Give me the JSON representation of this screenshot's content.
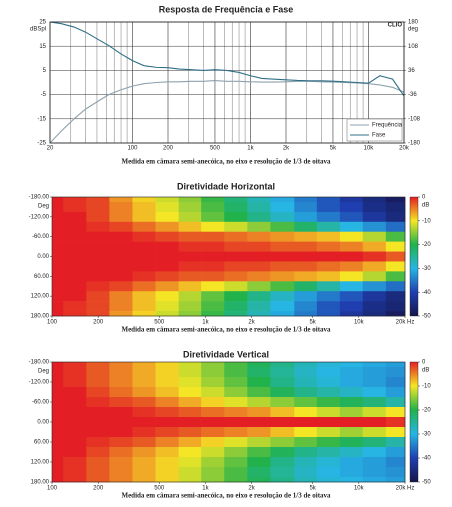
{
  "chart_data": [
    {
      "type": "line",
      "title": "Resposta de Frequência e Fase",
      "logo": "CLIO",
      "yunit": "dBSpl",
      "y2unit": "deg",
      "caption": "Medida em câmara semi-anecóica, no eixo e resolução de 1/3 de oitava",
      "xscale": "log",
      "xlim": [
        20,
        20000
      ],
      "xticks": [
        20,
        100,
        200,
        500,
        {
          "value": 1000,
          "label": "1k"
        },
        {
          "value": 2000,
          "label": "2k"
        },
        {
          "value": 5000,
          "label": "5k"
        },
        {
          "value": 10000,
          "label": "10k"
        },
        {
          "value": 20000,
          "label": "20k"
        }
      ],
      "xgrid": [
        30,
        40,
        50,
        60,
        70,
        80,
        90,
        300,
        400,
        600,
        700,
        800,
        900,
        3000,
        4000,
        6000,
        7000,
        8000,
        9000
      ],
      "ylim": [
        -25,
        25
      ],
      "yticks": [
        25,
        15,
        5,
        -5,
        -15,
        -25
      ],
      "y2lim": [
        -180,
        180
      ],
      "y2ticks": [
        180,
        108,
        36,
        -36,
        -108,
        -180
      ],
      "grid": true,
      "legend": "lower right",
      "x": [
        20,
        25,
        32,
        40,
        50,
        63,
        80,
        100,
        125,
        160,
        200,
        250,
        315,
        400,
        500,
        630,
        800,
        1000,
        1250,
        1600,
        2000,
        2500,
        3150,
        4000,
        5000,
        6300,
        8000,
        10000,
        12500,
        16000,
        20000
      ],
      "series": [
        {
          "name": "Frequência",
          "color": "#8ea2ae",
          "values": [
            -25,
            -20,
            -15,
            -11,
            -8,
            -5,
            -3,
            -1.5,
            -0.5,
            0,
            0.3,
            0.3,
            0.5,
            0.5,
            0.8,
            0.5,
            0.5,
            0.3,
            0.2,
            0.2,
            0.3,
            0.5,
            0.5,
            0.3,
            0.2,
            0,
            -0.2,
            -0.5,
            -1,
            -2,
            -4
          ]
        },
        {
          "name": "Fase",
          "color": "#2f6f86",
          "axis": "y2",
          "values": [
            180,
            175,
            165,
            150,
            130,
            110,
            85,
            65,
            50,
            45,
            44,
            40,
            38,
            36,
            38,
            36,
            30,
            20,
            12,
            10,
            8,
            6,
            5,
            5,
            4,
            2,
            0,
            -2,
            20,
            10,
            -40
          ]
        }
      ]
    },
    {
      "type": "heatmap",
      "title": "Diretividade Horizontal",
      "yunit": "Deg",
      "cunit": "dB",
      "caption": "Medida em câmara semi-anecóica, no eixo e resolução de 1/3 de oitava",
      "xscale": "log",
      "xlim": [
        100,
        20000
      ],
      "xticks": [
        100,
        200,
        500,
        {
          "value": 1000,
          "label": "1k"
        },
        {
          "value": 2000,
          "label": "2k"
        },
        {
          "value": 5000,
          "label": "5k"
        },
        {
          "value": 10000,
          "label": "10k"
        },
        {
          "value": 20000,
          "label": "20k Hz"
        }
      ],
      "ylim": [
        -180,
        180
      ],
      "yticks": [
        {
          "value": -180,
          "label": "-180.00"
        },
        {
          "value": -120,
          "label": "-120.00"
        },
        {
          "value": -60,
          "label": "-60.00"
        },
        {
          "value": 0,
          "label": "0.00"
        },
        {
          "value": 60,
          "label": "60.00"
        },
        {
          "value": 120,
          "label": "120.00"
        },
        {
          "value": 180,
          "label": "180.00"
        }
      ],
      "clim": [
        -50,
        0
      ],
      "cticks": [
        0,
        -10,
        -20,
        -30,
        -40,
        -50
      ],
      "colorscale": [
        {
          "value": 0,
          "color": "#e31e24"
        },
        {
          "value": -10,
          "color": "#f5e625"
        },
        {
          "value": -20,
          "color": "#21b24b"
        },
        {
          "value": -30,
          "color": "#27b5e3"
        },
        {
          "value": -40,
          "color": "#1f3fb0"
        },
        {
          "value": -50,
          "color": "#15154a"
        }
      ],
      "x": [
        100,
        140,
        200,
        280,
        400,
        560,
        800,
        1100,
        1600,
        2200,
        3200,
        4500,
        6300,
        9000,
        12500,
        18000
      ],
      "y": [
        -180,
        -150,
        -120,
        -90,
        -60,
        -30,
        0,
        30,
        60,
        90,
        120,
        150,
        180
      ],
      "z": [
        [
          0,
          -1,
          -2,
          -6,
          -9,
          -12,
          -15,
          -19,
          -23,
          -27,
          -31,
          -35,
          -38,
          -42,
          -45,
          -48
        ],
        [
          0,
          -1,
          -2,
          -5,
          -8,
          -11,
          -14,
          -18,
          -22,
          -26,
          -30,
          -34,
          -38,
          -40,
          -44,
          -46
        ],
        [
          0,
          0,
          -2,
          -5,
          -8,
          -10,
          -13,
          -17,
          -20,
          -24,
          -28,
          -32,
          -35,
          -38,
          -42,
          -45
        ],
        [
          0,
          0,
          -1,
          -2,
          -4,
          -6,
          -8,
          -10,
          -12,
          -15,
          -18,
          -22,
          -26,
          -30,
          -33,
          -36
        ],
        [
          0,
          0,
          0,
          0,
          -1,
          -2,
          -3,
          -3,
          -4,
          -5,
          -6,
          -7,
          -8,
          -10,
          -13,
          -18
        ],
        [
          0,
          0,
          0,
          0,
          0,
          0,
          -1,
          -1,
          -2,
          -2,
          -3,
          -3,
          -4,
          -5,
          -7,
          -10
        ],
        [
          0,
          0,
          0,
          0,
          0,
          0,
          0,
          0,
          0,
          0,
          0,
          0,
          0,
          0,
          -1,
          -3
        ],
        [
          0,
          0,
          0,
          0,
          0,
          0,
          -1,
          -1,
          -2,
          -2,
          -3,
          -3,
          -4,
          -5,
          -7,
          -10
        ],
        [
          0,
          0,
          0,
          0,
          -1,
          -2,
          -3,
          -3,
          -4,
          -5,
          -6,
          -7,
          -8,
          -10,
          -13,
          -18
        ],
        [
          0,
          0,
          -1,
          -2,
          -4,
          -6,
          -8,
          -10,
          -12,
          -15,
          -18,
          -22,
          -26,
          -30,
          -33,
          -36
        ],
        [
          0,
          0,
          -2,
          -5,
          -8,
          -10,
          -13,
          -17,
          -20,
          -24,
          -28,
          -32,
          -35,
          -38,
          -42,
          -45
        ],
        [
          0,
          -1,
          -2,
          -5,
          -8,
          -11,
          -14,
          -18,
          -22,
          -26,
          -30,
          -34,
          -38,
          -40,
          -44,
          -46
        ],
        [
          0,
          -1,
          -2,
          -6,
          -9,
          -12,
          -15,
          -19,
          -23,
          -27,
          -31,
          -35,
          -38,
          -42,
          -45,
          -48
        ]
      ]
    },
    {
      "type": "heatmap",
      "title": "Diretividade Vertical",
      "yunit": "Deg",
      "cunit": "dB",
      "caption": "Medida em câmara semi-anecóica, no eixo e resolução de 1/3 de oitava",
      "xscale": "log",
      "xlim": [
        100,
        20000
      ],
      "xticks": [
        100,
        200,
        500,
        {
          "value": 1000,
          "label": "1k"
        },
        {
          "value": 2000,
          "label": "2k"
        },
        {
          "value": 5000,
          "label": "5k"
        },
        {
          "value": 10000,
          "label": "10k"
        },
        {
          "value": 20000,
          "label": "20k Hz"
        }
      ],
      "ylim": [
        -180,
        180
      ],
      "yticks": [
        {
          "value": -180,
          "label": "-180.00"
        },
        {
          "value": -120,
          "label": "-120.00"
        },
        {
          "value": -60,
          "label": "-60.00"
        },
        {
          "value": 0,
          "label": "0.00"
        },
        {
          "value": 60,
          "label": "60.00"
        },
        {
          "value": 120,
          "label": "120.00"
        },
        {
          "value": 180,
          "label": "180.00"
        }
      ],
      "clim": [
        -50,
        0
      ],
      "cticks": [
        0,
        -10,
        -20,
        -30,
        -40,
        -50
      ],
      "colorscale": [
        {
          "value": 0,
          "color": "#e31e24"
        },
        {
          "value": -10,
          "color": "#f5e625"
        },
        {
          "value": -20,
          "color": "#21b24b"
        },
        {
          "value": -30,
          "color": "#27b5e3"
        },
        {
          "value": -40,
          "color": "#1f3fb0"
        },
        {
          "value": -50,
          "color": "#15154a"
        }
      ],
      "x": [
        100,
        140,
        200,
        280,
        400,
        560,
        800,
        1100,
        1600,
        2200,
        3200,
        4500,
        6300,
        9000,
        12500,
        18000
      ],
      "y": [
        -180,
        -150,
        -120,
        -90,
        -60,
        -30,
        0,
        30,
        60,
        90,
        120,
        150,
        180
      ],
      "z": [
        [
          0,
          -1,
          -3,
          -5,
          -7,
          -9,
          -12,
          -15,
          -18,
          -21,
          -24,
          -27,
          -29,
          -30,
          -31,
          -32
        ],
        [
          0,
          -1,
          -3,
          -5,
          -7,
          -9,
          -12,
          -15,
          -18,
          -22,
          -25,
          -28,
          -30,
          -31,
          -32,
          -33
        ],
        [
          0,
          -1,
          -3,
          -5,
          -7,
          -9,
          -11,
          -14,
          -17,
          -20,
          -24,
          -27,
          -29,
          -31,
          -32,
          -34
        ],
        [
          0,
          0,
          -2,
          -4,
          -6,
          -8,
          -10,
          -12,
          -15,
          -18,
          -21,
          -24,
          -26,
          -28,
          -30,
          -32
        ],
        [
          0,
          0,
          -1,
          -2,
          -3,
          -5,
          -7,
          -9,
          -11,
          -13,
          -15,
          -17,
          -19,
          -21,
          -23,
          -26
        ],
        [
          0,
          0,
          0,
          0,
          -1,
          -2,
          -3,
          -4,
          -5,
          -6,
          -8,
          -10,
          -12,
          -14,
          -12,
          -10
        ],
        [
          0,
          0,
          0,
          0,
          0,
          0,
          0,
          0,
          0,
          0,
          0,
          0,
          0,
          0,
          0,
          -1
        ],
        [
          0,
          0,
          0,
          0,
          -1,
          -2,
          -3,
          -4,
          -5,
          -6,
          -8,
          -10,
          -12,
          -14,
          -12,
          -10
        ],
        [
          0,
          0,
          -1,
          -2,
          -3,
          -5,
          -7,
          -9,
          -11,
          -13,
          -15,
          -17,
          -19,
          -21,
          -23,
          -26
        ],
        [
          0,
          0,
          -2,
          -4,
          -6,
          -8,
          -10,
          -12,
          -15,
          -18,
          -21,
          -24,
          -26,
          -28,
          -30,
          -32
        ],
        [
          0,
          -1,
          -3,
          -5,
          -7,
          -9,
          -11,
          -14,
          -17,
          -20,
          -24,
          -27,
          -29,
          -31,
          -32,
          -34
        ],
        [
          0,
          -1,
          -3,
          -5,
          -7,
          -9,
          -12,
          -15,
          -18,
          -22,
          -25,
          -28,
          -30,
          -31,
          -32,
          -33
        ],
        [
          0,
          -1,
          -3,
          -5,
          -7,
          -9,
          -12,
          -15,
          -18,
          -21,
          -24,
          -27,
          -29,
          -30,
          -31,
          -32
        ]
      ]
    }
  ]
}
